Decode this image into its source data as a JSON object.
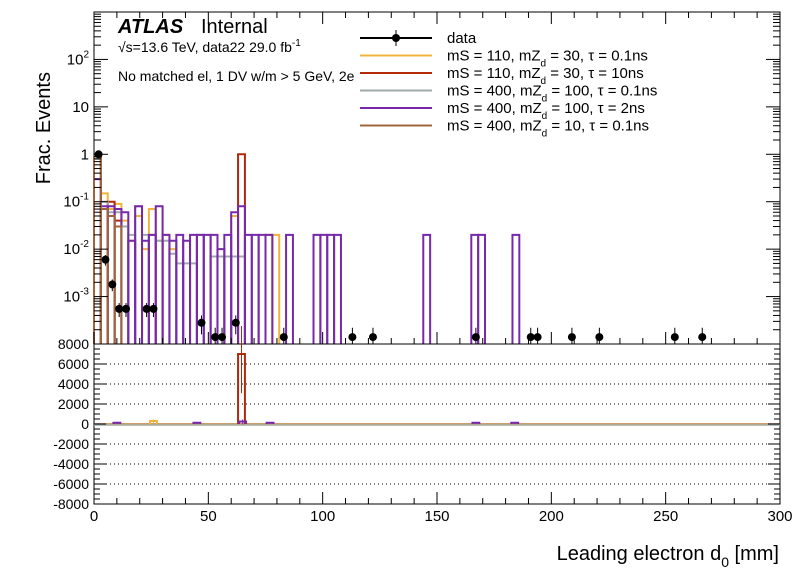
{
  "header": {
    "experiment": "ATLAS",
    "status": "Internal",
    "energy_line": "√s=13.6 TeV, data22 29.0 fb",
    "energy_sup": "-1",
    "selection": "No matched el, 1 DV w/m > 5 GeV, 2e"
  },
  "legend": [
    {
      "label": "data",
      "color": "#000000",
      "marker": true
    },
    {
      "label": "mS = 110, mZ_d = 30, τ = 0.1ns",
      "color": "#f0b43c"
    },
    {
      "label": "mS = 110, mZ_d = 30, τ = 10ns",
      "color": "#b4280a"
    },
    {
      "label": "mS = 400, mZ_d = 100, τ = 0.1ns",
      "color": "#a0aaaa"
    },
    {
      "label": "mS = 400, mZ_d = 100, τ = 2ns",
      "color": "#7828aa"
    },
    {
      "label": "mS = 400, mZ_d = 10, τ = 0.1ns",
      "color": "#a0643c"
    }
  ],
  "chart_data": [
    {
      "type": "histogram",
      "panel": "top",
      "ylabel": "Frac. Events",
      "yscale": "log",
      "ylim": [
        0.0001,
        1000
      ],
      "xlim": [
        0,
        300
      ],
      "y_ticks": [
        "10^{-3}",
        "10^{-2}",
        "10^{-1}",
        "1",
        "10",
        "10^{2}"
      ],
      "series": [
        {
          "name": "data",
          "kind": "points",
          "x": [
            2,
            5,
            8,
            11,
            14,
            23,
            26,
            47,
            53,
            56,
            62,
            83,
            113,
            122,
            167,
            191,
            194,
            209,
            221,
            254,
            266
          ],
          "y": [
            1.0,
            0.006,
            0.0018,
            0.00055,
            0.00055,
            0.00055,
            0.00055,
            0.00028,
            0.00014,
            0.00014,
            0.00028,
            0.00014,
            0.00014,
            0.00014,
            0.00014,
            0.00014,
            0.00014,
            0.00014,
            0.00014,
            0.00014,
            0.00014
          ],
          "yerr": [
            0.1,
            0.0015,
            0.0005,
            0.00018,
            0.00018,
            0.00018,
            0.00018,
            0.00012,
            8e-05,
            8e-05,
            0.00012,
            8e-05,
            8e-05,
            8e-05,
            8e-05,
            8e-05,
            8e-05,
            8e-05,
            8e-05,
            8e-05,
            8e-05
          ]
        },
        {
          "name": "mS = 110, mZ_d = 30, τ = 0.1ns",
          "kind": "hist",
          "bins": [
            [
              0,
              3,
              0.9
            ],
            [
              3,
              6,
              0.15
            ],
            [
              6,
              9,
              0.07
            ],
            [
              9,
              12,
              0.09
            ],
            [
              12,
              15,
              0.04
            ],
            [
              15,
              18,
              0.015
            ],
            [
              18,
              21,
              0.05
            ],
            [
              21,
              24,
              0.01
            ],
            [
              24,
              27,
              0.07
            ],
            [
              27,
              30,
              0.015
            ],
            [
              30,
              33,
              0.02
            ],
            [
              33,
              36,
              0.01
            ],
            [
              60,
              63,
              0.05
            ],
            [
              75,
              78,
              0.02
            ],
            [
              78,
              81,
              0.02
            ]
          ]
        },
        {
          "name": "mS = 110, mZ_d = 30, τ = 10ns",
          "kind": "hist",
          "bins": [
            [
              0,
              3,
              0.9
            ],
            [
              6,
              9,
              0.1
            ],
            [
              9,
              12,
              0.04
            ],
            [
              63,
              66,
              1.0
            ]
          ]
        },
        {
          "name": "mS = 400, mZ_d = 100, τ = 0.1ns",
          "kind": "hist",
          "bins": [
            [
              0,
              3,
              0.8
            ],
            [
              3,
              6,
              0.1
            ],
            [
              6,
              9,
              0.06
            ],
            [
              9,
              12,
              0.06
            ],
            [
              12,
              15,
              0.03
            ],
            [
              15,
              18,
              0.02
            ],
            [
              18,
              21,
              0.08
            ],
            [
              21,
              24,
              0.02
            ],
            [
              24,
              27,
              0.02
            ],
            [
              27,
              30,
              0.015
            ],
            [
              30,
              33,
              0.015
            ],
            [
              33,
              36,
              0.008
            ],
            [
              36,
              39,
              0.005
            ],
            [
              39,
              42,
              0.005
            ],
            [
              42,
              45,
              0.005
            ],
            [
              45,
              48,
              0.02
            ],
            [
              51,
              54,
              0.007
            ],
            [
              54,
              57,
              0.007
            ],
            [
              57,
              60,
              0.007
            ],
            [
              60,
              63,
              0.007
            ],
            [
              63,
              66,
              0.007
            ]
          ]
        },
        {
          "name": "mS = 400, mZ_d = 100, τ = 2ns",
          "kind": "hist",
          "bins": [
            [
              0,
              3,
              0.3
            ],
            [
              3,
              6,
              0.08
            ],
            [
              6,
              9,
              0.08
            ],
            [
              9,
              12,
              0.07
            ],
            [
              12,
              15,
              0.06
            ],
            [
              15,
              18,
              0.015
            ],
            [
              18,
              21,
              0.08
            ],
            [
              21,
              24,
              0.015
            ],
            [
              24,
              27,
              0.02
            ],
            [
              27,
              30,
              0.08
            ],
            [
              30,
              33,
              0.02
            ],
            [
              33,
              36,
              0.015
            ],
            [
              36,
              39,
              0.02
            ],
            [
              39,
              42,
              0.015
            ],
            [
              42,
              45,
              0.02
            ],
            [
              45,
              48,
              0.02
            ],
            [
              48,
              51,
              0.02
            ],
            [
              51,
              54,
              0.02
            ],
            [
              54,
              57,
              0.01
            ],
            [
              57,
              60,
              0.02
            ],
            [
              60,
              63,
              0.06
            ],
            [
              63,
              66,
              0.08
            ],
            [
              66,
              69,
              0.02
            ],
            [
              69,
              72,
              0.02
            ],
            [
              72,
              75,
              0.02
            ],
            [
              75,
              78,
              0.02
            ],
            [
              84,
              87,
              0.02
            ],
            [
              96,
              99,
              0.02
            ],
            [
              99,
              102,
              0.02
            ],
            [
              102,
              105,
              0.02
            ],
            [
              105,
              108,
              0.02
            ],
            [
              144,
              147,
              0.02
            ],
            [
              165,
              168,
              0.02
            ],
            [
              168,
              171,
              0.02
            ],
            [
              183,
              186,
              0.02
            ]
          ]
        },
        {
          "name": "mS = 400, mZ_d = 10, τ = 0.1ns",
          "kind": "hist",
          "bins": [
            [
              0,
              3,
              0.9
            ],
            [
              3,
              6,
              0.07
            ],
            [
              6,
              9,
              0.05
            ],
            [
              9,
              12,
              0.03
            ]
          ]
        }
      ]
    },
    {
      "type": "histogram",
      "panel": "bottom",
      "xlabel": "Leading electron d_0 [mm]",
      "ylim": [
        -8000,
        8000
      ],
      "xlim": [
        0,
        300
      ],
      "x_ticks": [
        0,
        50,
        100,
        150,
        200,
        250,
        300
      ],
      "y_ticks": [
        -8000,
        -6000,
        -4000,
        -2000,
        0,
        2000,
        4000,
        6000,
        8000
      ],
      "spikes": [
        {
          "x": 64.5,
          "y": 7000,
          "err": 2800,
          "color": "#b4280a"
        },
        {
          "x": 26,
          "y": 300,
          "err": 150,
          "color": "#f0b43c"
        },
        {
          "x": 65,
          "y": 250,
          "err": 200,
          "color": "#7828aa"
        },
        {
          "x": 10,
          "y": 120,
          "err": 80,
          "color": "#7828aa"
        },
        {
          "x": 45,
          "y": 120,
          "err": 80,
          "color": "#7828aa"
        },
        {
          "x": 77,
          "y": 120,
          "err": 80,
          "color": "#7828aa"
        },
        {
          "x": 167,
          "y": 120,
          "err": 80,
          "color": "#7828aa"
        },
        {
          "x": 184,
          "y": 120,
          "err": 80,
          "color": "#7828aa"
        }
      ]
    }
  ]
}
